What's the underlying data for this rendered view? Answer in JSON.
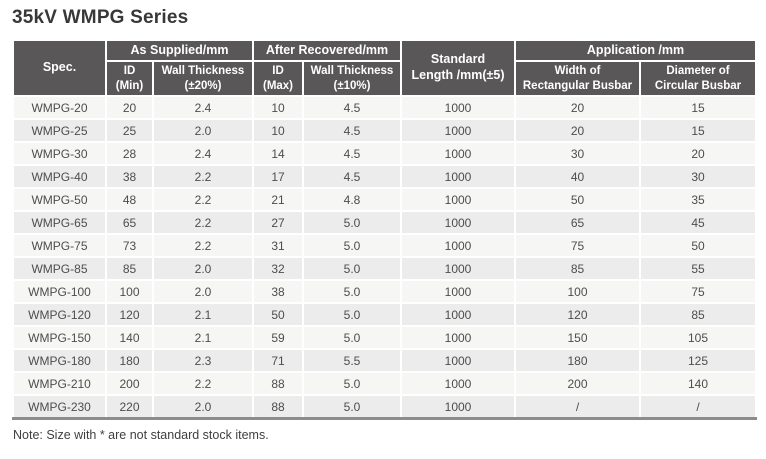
{
  "page": {
    "title": "35kV WMPG Series",
    "note": "Note: Size with * are not standard stock items."
  },
  "colors": {
    "header_background": "#595757",
    "header_text": "#ffffff",
    "row_odd_background": "#f6f6f5",
    "row_even_background": "#ececec",
    "grid_line": "#ffffff",
    "table_bottom_rule": "#8c8c8c",
    "body_text": "#4d4d4d",
    "title_text": "#38383a"
  },
  "table": {
    "header": {
      "spec": "Spec.",
      "as_supplied": "As Supplied/mm",
      "after_recovered": "After Recovered/mm",
      "standard_length": "Standard\nLength /mm(±5)",
      "application": "Application /mm",
      "id_min": "ID\n(Min)",
      "wall_thickness_20": "Wall Thickness\n(±20%)",
      "id_max": "ID\n(Max)",
      "wall_thickness_10": "Wall Thickness\n(±10%)",
      "width_rectangular_busbar": "Width of\nRectangular Busbar",
      "diameter_circular_busbar": "Diameter of\nCircular Busbar"
    },
    "rows": [
      [
        "WMPG-20",
        "20",
        "2.4",
        "10",
        "4.5",
        "1000",
        "20",
        "15"
      ],
      [
        "WMPG-25",
        "25",
        "2.0",
        "10",
        "4.5",
        "1000",
        "20",
        "15"
      ],
      [
        "WMPG-30",
        "28",
        "2.4",
        "14",
        "4.5",
        "1000",
        "30",
        "20"
      ],
      [
        "WMPG-40",
        "38",
        "2.2",
        "17",
        "4.5",
        "1000",
        "40",
        "30"
      ],
      [
        "WMPG-50",
        "48",
        "2.2",
        "21",
        "4.8",
        "1000",
        "50",
        "35"
      ],
      [
        "WMPG-65",
        "65",
        "2.2",
        "27",
        "5.0",
        "1000",
        "65",
        "45"
      ],
      [
        "WMPG-75",
        "73",
        "2.2",
        "31",
        "5.0",
        "1000",
        "75",
        "50"
      ],
      [
        "WMPG-85",
        "85",
        "2.0",
        "32",
        "5.0",
        "1000",
        "85",
        "55"
      ],
      [
        "WMPG-100",
        "100",
        "2.0",
        "38",
        "5.0",
        "1000",
        "100",
        "75"
      ],
      [
        "WMPG-120",
        "120",
        "2.1",
        "50",
        "5.0",
        "1000",
        "120",
        "85"
      ],
      [
        "WMPG-150",
        "140",
        "2.1",
        "59",
        "5.0",
        "1000",
        "150",
        "105"
      ],
      [
        "WMPG-180",
        "180",
        "2.3",
        "71",
        "5.5",
        "1000",
        "180",
        "125"
      ],
      [
        "WMPG-210",
        "200",
        "2.2",
        "88",
        "5.0",
        "1000",
        "200",
        "140"
      ],
      [
        "WMPG-230",
        "220",
        "2.0",
        "88",
        "5.0",
        "1000",
        "/",
        "/"
      ]
    ]
  }
}
